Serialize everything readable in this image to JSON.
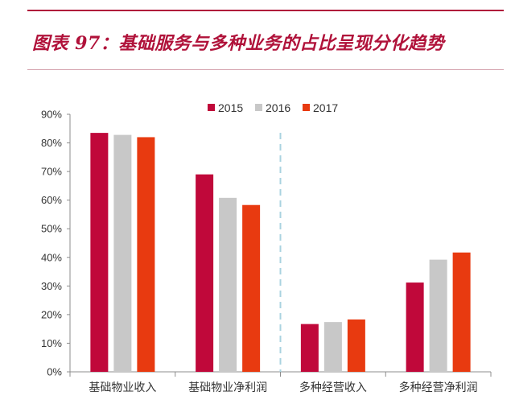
{
  "figure": {
    "title": "图表 97：基础服务与多种业务的占比呈现分化趋势"
  },
  "colors": {
    "accent": "#b0123a",
    "series_2015": "#c0083a",
    "series_2016": "#c8c8c8",
    "series_2017": "#e83a10",
    "divider": "#a9d3e0"
  },
  "chart_data": {
    "type": "bar",
    "categories": [
      "基础物业收入",
      "基础物业净利润",
      "多种经营收入",
      "多种经营净利润"
    ],
    "series": [
      {
        "name": "2015",
        "values": [
          83.5,
          69.0,
          16.7,
          31.2
        ]
      },
      {
        "name": "2016",
        "values": [
          82.8,
          60.8,
          17.4,
          39.2
        ]
      },
      {
        "name": "2017",
        "values": [
          82.0,
          58.3,
          18.3,
          41.7
        ]
      }
    ],
    "y_ticks": [
      "0%",
      "10%",
      "20%",
      "30%",
      "40%",
      "50%",
      "60%",
      "70%",
      "80%",
      "90%"
    ],
    "ylim": [
      0,
      90
    ],
    "grid": false,
    "legend_position": "top-center",
    "divider_between_categories": [
      2,
      3
    ]
  }
}
